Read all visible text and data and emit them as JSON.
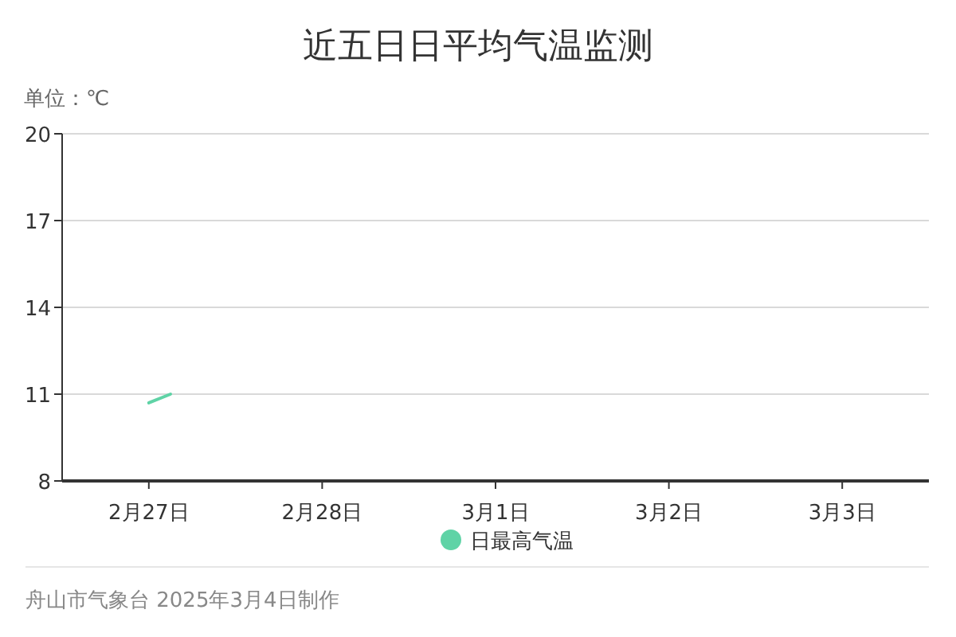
{
  "chart_data": {
    "type": "line",
    "title": "近五日日平均气温监测",
    "ylabel": "单位：℃",
    "xlim": [
      "2025-02-26T12:00",
      "2025-03-03T12:00"
    ],
    "xticks": [
      {
        "value": "2025-02-27",
        "label": "2月27日"
      },
      {
        "value": "2025-02-28",
        "label": "2月28日"
      },
      {
        "value": "2025-03-01",
        "label": "3月1日"
      },
      {
        "value": "2025-03-02",
        "label": "3月2日"
      },
      {
        "value": "2025-03-03",
        "label": "3月3日"
      }
    ],
    "ylim": [
      8,
      20
    ],
    "yticks": [
      8,
      11,
      14,
      17,
      20
    ],
    "grid": "y",
    "legend": "bottom",
    "marker": "none",
    "line_style": "solid",
    "series": [
      {
        "name": "日最高气温",
        "color": "#5fd3a6",
        "x": [
          "2025-02-27",
          "2025-02-27T03:00"
        ],
        "values": [
          10.7,
          11.0
        ]
      }
    ],
    "annotations": [
      "舟山市气象台 2025年3月4日制作"
    ]
  }
}
